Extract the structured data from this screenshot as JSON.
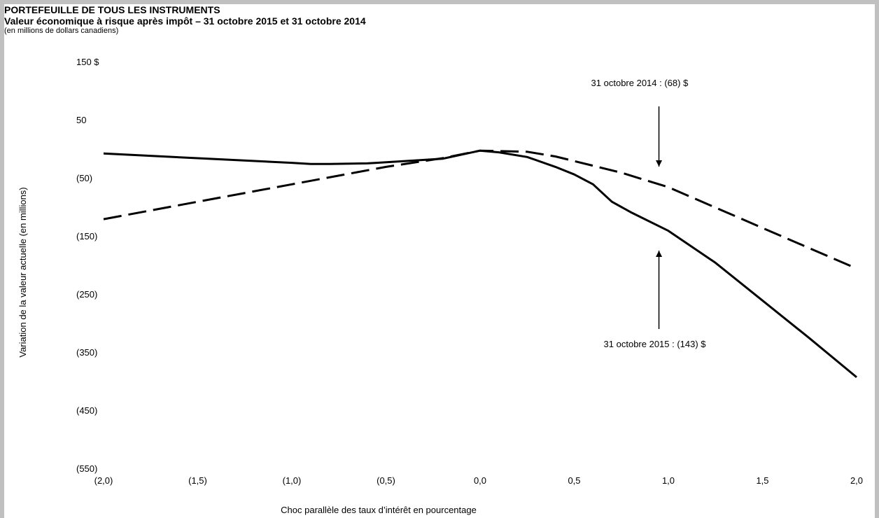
{
  "header": {
    "title": "PORTEFEUILLE DE TOUS LES INSTRUMENTS",
    "subtitle": "Valeur économique à risque après impôt – 31 octobre 2015 et 31 octobre 2014",
    "unit_note": "(en millions de dollars canadiens)"
  },
  "chart_data": {
    "type": "line",
    "xlabel": "Choc parallèle des taux d’intérêt en pourcentage",
    "ylabel": "Variation de la valeur actuelle (en millions)",
    "xlim": [
      -2.0,
      2.0
    ],
    "ylim": [
      -550,
      150
    ],
    "x_ticks": [
      {
        "value": -2.0,
        "label": "(2,0)"
      },
      {
        "value": -1.5,
        "label": "(1,5)"
      },
      {
        "value": -1.0,
        "label": "(1,0)"
      },
      {
        "value": -0.5,
        "label": "(0,5)"
      },
      {
        "value": 0.0,
        "label": "0,0"
      },
      {
        "value": 0.5,
        "label": "0,5"
      },
      {
        "value": 1.0,
        "label": "1,0"
      },
      {
        "value": 1.5,
        "label": "1,5"
      },
      {
        "value": 2.0,
        "label": "2,0"
      }
    ],
    "y_ticks": [
      {
        "value": 150,
        "label": "150  $"
      },
      {
        "value": 50,
        "label": "50"
      },
      {
        "value": -50,
        "label": "(50)"
      },
      {
        "value": -150,
        "label": "(150)"
      },
      {
        "value": -250,
        "label": "(250)"
      },
      {
        "value": -350,
        "label": "(350)"
      },
      {
        "value": -450,
        "label": "(450)"
      },
      {
        "value": -550,
        "label": "(550)"
      }
    ],
    "grid": false,
    "series": [
      {
        "name": "31 octobre 2015",
        "style": "solid",
        "color": "#000000",
        "x": [
          -2.0,
          -1.5,
          -1.0,
          -0.9,
          -0.8,
          -0.6,
          -0.55,
          -0.4,
          -0.2,
          0.0,
          0.1,
          0.25,
          0.4,
          0.5,
          0.6,
          0.65,
          0.7,
          0.8,
          1.0,
          1.25,
          1.5,
          1.75,
          2.0
        ],
        "y": [
          -7,
          -15,
          -23,
          -25,
          -25,
          -24,
          -23,
          -20,
          -16,
          -2,
          -5,
          -13,
          -30,
          -43,
          -60,
          -75,
          -90,
          -108,
          -140,
          -195,
          -260,
          -325,
          -392
        ]
      },
      {
        "name": "31 octobre 2014",
        "style": "dashed",
        "color": "#000000",
        "x": [
          -2.0,
          -1.5,
          -1.0,
          -0.5,
          -0.2,
          0.0,
          0.25,
          0.4,
          0.5,
          0.75,
          1.0,
          1.5,
          2.0
        ],
        "y": [
          -120,
          -90,
          -60,
          -30,
          -15,
          -2,
          -4,
          -12,
          -20,
          -40,
          -65,
          -135,
          -205
        ]
      }
    ],
    "annotations": [
      {
        "text": "31 octobre 2014 : (68) $",
        "series": "31 octobre 2014",
        "x": 0.95,
        "value": -68,
        "side": "above"
      },
      {
        "text": "31 octobre 2015 : (143) $",
        "series": "31 octobre 2015",
        "x": 0.95,
        "value": -143,
        "side": "below"
      }
    ]
  }
}
